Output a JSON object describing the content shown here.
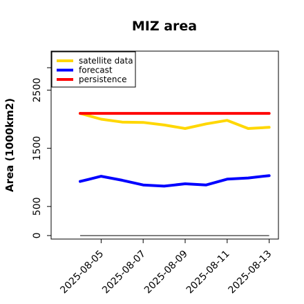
{
  "chart_data": {
    "type": "line",
    "title": "MIZ area",
    "xlabel": "",
    "ylabel": "Area (1000km2)",
    "x": [
      "2025-08-04",
      "2025-08-05",
      "2025-08-06",
      "2025-08-07",
      "2025-08-08",
      "2025-08-09",
      "2025-08-10",
      "2025-08-11",
      "2025-08-12",
      "2025-08-13"
    ],
    "x_tick_labels": [
      "2025-08-05",
      "2025-08-07",
      "2025-08-09",
      "2025-08-11",
      "2025-08-13"
    ],
    "highlighted_tick": "2025-08-05",
    "highlight_color": "#228B22",
    "yticks": [
      0,
      500,
      1500,
      2500
    ],
    "ylim": [
      -60,
      3170
    ],
    "grid": false,
    "legend_position": "top-left",
    "series": [
      {
        "name": "satellite data",
        "color": "#FFD700",
        "values": [
          2100,
          2000,
          1950,
          1945,
          1900,
          1840,
          1920,
          1980,
          1840,
          1860
        ]
      },
      {
        "name": "forecast",
        "color": "#0000FF",
        "values": [
          930,
          1020,
          950,
          870,
          850,
          890,
          870,
          970,
          990,
          1030
        ]
      },
      {
        "name": "persistence",
        "color": "#FF0000",
        "values": [
          2100,
          2100,
          2100,
          2100,
          2100,
          2100,
          2100,
          2100,
          2100,
          2100
        ]
      }
    ],
    "reference_line": {
      "value": 0,
      "color": "#808080"
    }
  }
}
